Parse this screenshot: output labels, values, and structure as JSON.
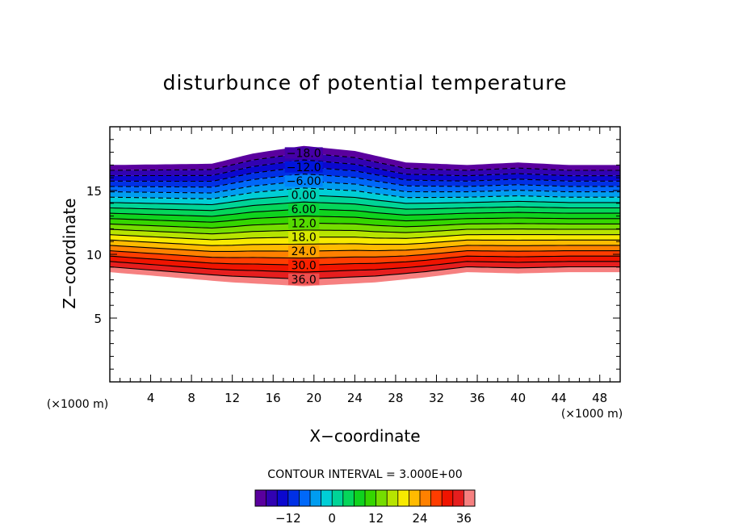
{
  "chart_data": {
    "type": "contour",
    "title": "disturbunce of potential temperature",
    "xlabel": "X−coordinate",
    "ylabel": "Z−coordinate",
    "x_unit": "(×1000 m)",
    "y_unit": "(×1000 m)",
    "xlim": [
      0,
      50
    ],
    "ylim": [
      0,
      20
    ],
    "x_ticks": [
      4,
      8,
      12,
      16,
      20,
      24,
      28,
      32,
      36,
      40,
      44,
      48
    ],
    "x_tick_labels": [
      "4",
      "8",
      "12",
      "16",
      "20",
      "24",
      "28",
      "32",
      "36",
      "40",
      "44",
      "48"
    ],
    "y_ticks": [
      5,
      10,
      15
    ],
    "y_tick_labels": [
      "5",
      "10",
      "15"
    ],
    "contour_interval_text": "CONTOUR INTERVAL = 3.000E+00",
    "contour_min": -21,
    "contour_max": 39,
    "contour_step": 3,
    "negative_lines_dashed": true,
    "contour_labels": [
      {
        "value": -18,
        "text": "−18.0"
      },
      {
        "value": -12,
        "text": "−12.0"
      },
      {
        "value": -6,
        "text": "−6.00"
      },
      {
        "value": 0,
        "text": "0.00"
      },
      {
        "value": 6,
        "text": "6.00"
      },
      {
        "value": 12,
        "text": "12.0"
      },
      {
        "value": 18,
        "text": "18.0"
      },
      {
        "value": 24,
        "text": "24.0"
      },
      {
        "value": 30,
        "text": "30.0"
      },
      {
        "value": 36,
        "text": "36.0"
      }
    ],
    "label_x": 19,
    "top_boundary": [
      [
        0,
        17.0
      ],
      [
        10,
        17.1
      ],
      [
        14,
        17.9
      ],
      [
        19,
        18.5
      ],
      [
        24,
        18.1
      ],
      [
        29,
        17.2
      ],
      [
        35,
        17.0
      ],
      [
        40,
        17.2
      ],
      [
        45,
        17.0
      ],
      [
        50,
        17.0
      ]
    ],
    "bottom_boundary": [
      [
        0,
        8.6
      ],
      [
        6,
        8.2
      ],
      [
        12,
        7.8
      ],
      [
        19,
        7.5
      ],
      [
        26,
        7.8
      ],
      [
        31,
        8.2
      ],
      [
        35,
        8.6
      ],
      [
        40,
        8.5
      ],
      [
        45,
        8.6
      ],
      [
        50,
        8.6
      ]
    ],
    "colorbar": {
      "tick_values": [
        -12,
        0,
        12,
        24,
        36
      ],
      "tick_labels": [
        "−12",
        "0",
        "12",
        "24",
        "36"
      ]
    }
  }
}
